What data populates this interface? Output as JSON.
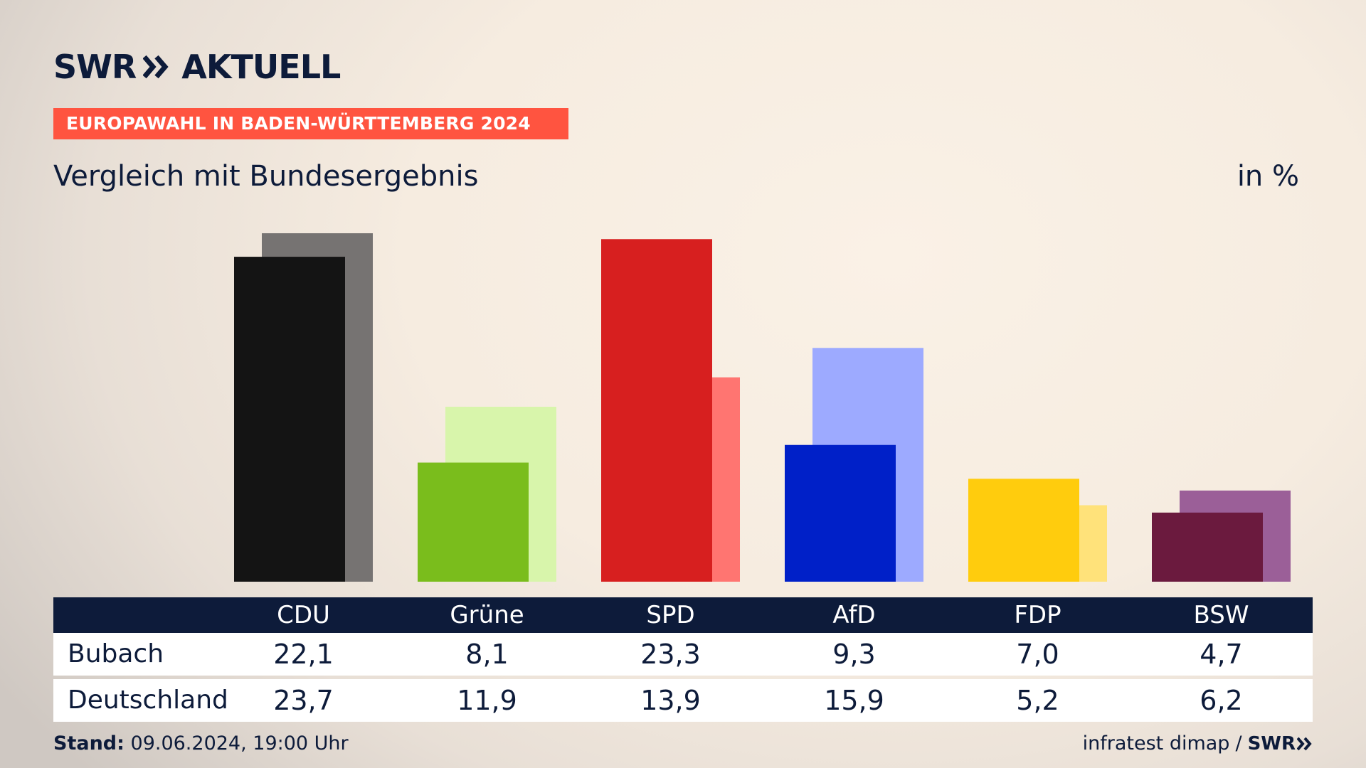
{
  "header": {
    "brand": "SWR",
    "brand_product": "AKTUELL",
    "banner": "EUROPAWAHL IN BADEN-WÜRTTEMBERG 2024",
    "title": "Vergleich mit Bundesergebnis",
    "unit": "in %"
  },
  "chart_data": {
    "type": "bar",
    "categories": [
      "CDU",
      "Grüne",
      "SPD",
      "AfD",
      "FDP",
      "BSW"
    ],
    "series": [
      {
        "name": "Bubach",
        "values": [
          22.1,
          8.1,
          23.3,
          9.3,
          7.0,
          4.7
        ]
      },
      {
        "name": "Deutschland",
        "values": [
          23.7,
          11.9,
          13.9,
          15.9,
          5.2,
          6.2
        ]
      }
    ],
    "ylim": [
      0,
      24
    ],
    "colors_primary": [
      "#141414",
      "#7abd1c",
      "#d71f1f",
      "#0020c8",
      "#ffcc0d",
      "#6b1a3e"
    ],
    "colors_secondary": [
      "#767372",
      "#d8f5ab",
      "#ff7571",
      "#9daaff",
      "#ffe27a",
      "#9b5f98"
    ]
  },
  "table": {
    "rows": [
      {
        "label": "Bubach",
        "values": [
          "22,1",
          "8,1",
          "23,3",
          "9,3",
          "7,0",
          "4,7"
        ]
      },
      {
        "label": "Deutschland",
        "values": [
          "23,7",
          "11,9",
          "13,9",
          "15,9",
          "5,2",
          "6,2"
        ]
      }
    ]
  },
  "footer": {
    "stand_label": "Stand:",
    "stand_value": "09.06.2024, 19:00 Uhr",
    "source": "infratest dimap",
    "separator": "/",
    "brand": "SWR"
  }
}
